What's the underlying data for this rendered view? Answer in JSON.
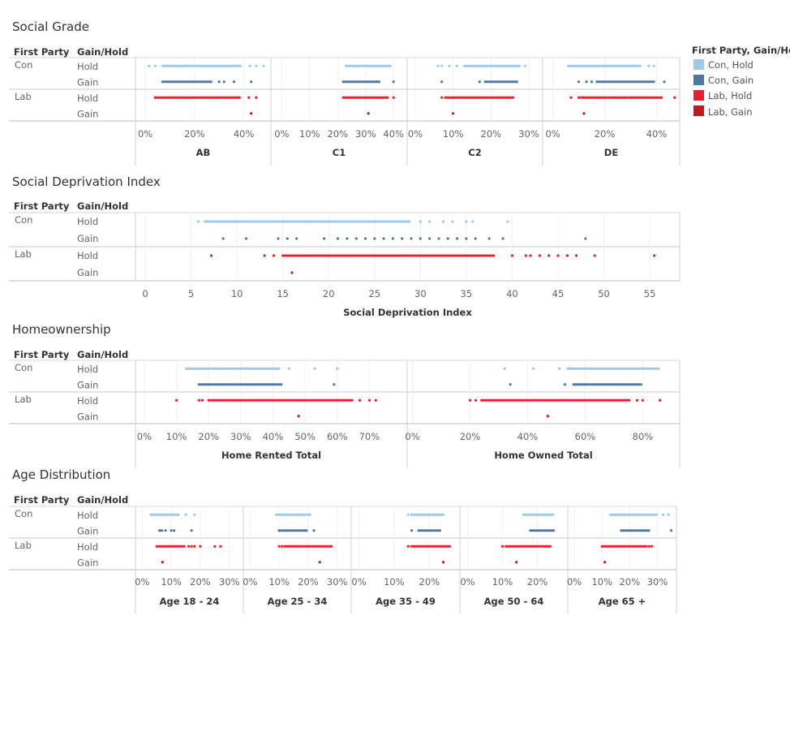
{
  "legend": {
    "title": "First Party, Gain/Hold",
    "items": [
      {
        "label": "Con, Hold",
        "color": "#9dc9ea"
      },
      {
        "label": "Con, Gain",
        "color": "#4e79a7"
      },
      {
        "label": "Lab, Hold",
        "color": "#ee1c2e"
      },
      {
        "label": "Lab, Gain",
        "color": "#c0191e"
      }
    ]
  },
  "row_headers": {
    "party": "First Party",
    "gain_hold": "Gain/Hold"
  },
  "row_labels": {
    "con": "Con",
    "lab": "Lab",
    "hold": "Hold",
    "gain": "Gain"
  },
  "chart_data": [
    {
      "type": "scatter",
      "title": "Social Grade",
      "rows": [
        "Con, Hold",
        "Con, Gain",
        "Lab, Hold",
        "Lab, Gain"
      ],
      "panels": [
        {
          "title": "AB",
          "xlim": [
            -3,
            50
          ],
          "ticks": [
            0,
            20,
            40
          ],
          "tick_labels": [
            "0%",
            "20%",
            "40%"
          ],
          "series": [
            {
              "range": [
                7,
                39
              ],
              "outliers": [
                1.5,
                4,
                42.5,
                45,
                48
              ]
            },
            {
              "range": [
                7,
                27
              ],
              "outliers": [
                30,
                32,
                36,
                43
              ]
            },
            {
              "range": [
                4,
                39
              ],
              "outliers": [
                42,
                45
              ]
            },
            {
              "range": null,
              "outliers": [
                43
              ]
            }
          ]
        },
        {
          "title": "C1",
          "xlim": [
            -3,
            44
          ],
          "ticks": [
            0,
            10,
            20,
            30,
            40
          ],
          "tick_labels": [
            "0%",
            "10%",
            "20%",
            "30%",
            "40%"
          ],
          "series": [
            {
              "range": [
                23,
                39
              ],
              "outliers": []
            },
            {
              "range": [
                22,
                35
              ],
              "outliers": [
                40
              ]
            },
            {
              "range": [
                22,
                38
              ],
              "outliers": [
                40
              ]
            },
            {
              "range": null,
              "outliers": [
                31
              ]
            }
          ]
        },
        {
          "title": "C2",
          "xlim": [
            -1.5,
            33
          ],
          "ticks": [
            0,
            10,
            20,
            30
          ],
          "tick_labels": [
            "0%",
            "10%",
            "20%",
            "30%"
          ],
          "series": [
            {
              "range": [
                13,
                28
              ],
              "outliers": [
                6,
                7,
                9,
                11,
                29
              ]
            },
            {
              "range": [
                18.5,
                27
              ],
              "outliers": [
                7,
                17
              ]
            },
            {
              "range": [
                8,
                26
              ],
              "outliers": [
                7
              ]
            },
            {
              "range": null,
              "outliers": [
                10
              ]
            }
          ]
        },
        {
          "title": "DE",
          "xlim": [
            -3,
            48
          ],
          "ticks": [
            0,
            20,
            40
          ],
          "tick_labels": [
            "0%",
            "20%",
            "40%"
          ],
          "series": [
            {
              "range": [
                6,
                34
              ],
              "outliers": [
                37,
                39
              ]
            },
            {
              "range": [
                17,
                39
              ],
              "outliers": [
                10,
                13,
                15,
                43
              ]
            },
            {
              "range": [
                11,
                42
              ],
              "outliers": [
                7,
                10,
                47
              ]
            },
            {
              "range": null,
              "outliers": [
                12
              ]
            }
          ]
        }
      ]
    },
    {
      "type": "scatter",
      "title": "Social Deprivation Index",
      "rows": [
        "Con, Hold",
        "Con, Gain",
        "Lab, Hold",
        "Lab, Gain"
      ],
      "xlabel": "Social Deprivation Index",
      "panels": [
        {
          "title": "Social Deprivation Index",
          "xlim": [
            -0.8,
            58
          ],
          "ticks": [
            0,
            5,
            10,
            15,
            20,
            25,
            30,
            35,
            40,
            45,
            50,
            55
          ],
          "tick_labels": [
            "0",
            "5",
            "10",
            "15",
            "20",
            "25",
            "30",
            "35",
            "40",
            "45",
            "50",
            "55"
          ],
          "series": [
            {
              "range": [
                6.5,
                29
              ],
              "outliers": [
                5.8,
                30,
                31,
                32.5,
                33.5,
                35,
                35.7,
                39.5
              ]
            },
            {
              "range": null,
              "outliers": [
                8.5,
                11,
                14.5,
                15.5,
                16.5,
                19.5,
                21,
                22,
                23,
                24,
                25,
                26,
                27,
                28,
                29,
                30,
                31,
                32,
                33,
                34,
                35,
                36,
                37.5,
                39,
                48
              ]
            },
            {
              "range": [
                15,
                38
              ],
              "outliers": [
                7.2,
                13,
                14,
                40,
                41.5,
                42,
                43,
                44,
                45,
                46,
                47,
                49,
                55.5
              ]
            },
            {
              "range": null,
              "outliers": [
                16
              ]
            }
          ]
        }
      ]
    },
    {
      "type": "scatter",
      "title": "Homeownership",
      "rows": [
        "Con, Hold",
        "Con, Gain",
        "Lab, Hold",
        "Lab, Gain"
      ],
      "panels": [
        {
          "title": "Home Rented Total",
          "xlim": [
            -2,
            81
          ],
          "ticks": [
            0,
            10,
            20,
            30,
            40,
            50,
            60,
            70
          ],
          "tick_labels": [
            "0%",
            "10%",
            "20%",
            "30%",
            "40%",
            "50%",
            "60%",
            "70%"
          ],
          "series": [
            {
              "range": [
                13,
                42
              ],
              "outliers": [
                45,
                53,
                60
              ]
            },
            {
              "range": [
                17,
                43
              ],
              "outliers": [
                59
              ]
            },
            {
              "range": [
                20,
                65
              ],
              "outliers": [
                10,
                17,
                18,
                67,
                70,
                72
              ]
            },
            {
              "range": null,
              "outliers": [
                48
              ]
            }
          ]
        },
        {
          "title": "Home Owned Total",
          "xlim": [
            -1,
            92
          ],
          "ticks": [
            0,
            20,
            40,
            60,
            80
          ],
          "tick_labels": [
            "0%",
            "20%",
            "40%",
            "60%",
            "80%"
          ],
          "series": [
            {
              "range": [
                54,
                86
              ],
              "outliers": [
                32,
                42,
                51
              ]
            },
            {
              "range": [
                56,
                80
              ],
              "outliers": [
                34,
                53
              ]
            },
            {
              "range": [
                24,
                76
              ],
              "outliers": [
                20,
                22,
                78,
                80,
                86
              ]
            },
            {
              "range": null,
              "outliers": [
                47
              ]
            }
          ]
        }
      ]
    },
    {
      "type": "scatter",
      "title": "Age Distribution",
      "rows": [
        "Con, Hold",
        "Con, Gain",
        "Lab, Hold",
        "Lab, Gain"
      ],
      "panels": [
        {
          "title": "Age 18 - 24",
          "xlim": [
            -1.5,
            34
          ],
          "ticks": [
            0,
            10,
            20,
            30
          ],
          "tick_labels": [
            "0%",
            "10%",
            "20%",
            "30%"
          ],
          "series": [
            {
              "range": [
                3,
                13
              ],
              "outliers": [
                15,
                18
              ]
            },
            {
              "range": [
                6,
                7
              ],
              "outliers": [
                8,
                10,
                11,
                17
              ]
            },
            {
              "range": [
                5,
                15
              ],
              "outliers": [
                16,
                17,
                18,
                20,
                25,
                27
              ]
            },
            {
              "range": null,
              "outliers": [
                7
              ]
            }
          ]
        },
        {
          "title": "Age 25 - 34",
          "xlim": [
            -1.5,
            34
          ],
          "ticks": [
            0,
            10,
            20,
            30
          ],
          "tick_labels": [
            "0%",
            "10%",
            "20%",
            "30%"
          ],
          "series": [
            {
              "range": [
                9,
                21
              ],
              "outliers": []
            },
            {
              "range": [
                10,
                20
              ],
              "outliers": [
                22
              ]
            },
            {
              "range": [
                12,
                28
              ],
              "outliers": [
                10,
                11
              ]
            },
            {
              "range": null,
              "outliers": [
                24
              ]
            }
          ]
        },
        {
          "title": "Age 35 - 49",
          "xlim": [
            -1.5,
            28
          ],
          "ticks": [
            0,
            10,
            20
          ],
          "tick_labels": [
            "0%",
            "10%",
            "20%"
          ],
          "series": [
            {
              "range": [
                15,
                24
              ],
              "outliers": [
                14
              ]
            },
            {
              "range": [
                17,
                23
              ],
              "outliers": [
                15
              ]
            },
            {
              "range": [
                15,
                26
              ],
              "outliers": [
                14
              ]
            },
            {
              "range": null,
              "outliers": [
                24
              ]
            }
          ]
        },
        {
          "title": "Age 50 - 64",
          "xlim": [
            -1.5,
            28
          ],
          "ticks": [
            0,
            10,
            20
          ],
          "tick_labels": [
            "0%",
            "10%",
            "20%"
          ],
          "series": [
            {
              "range": [
                16,
                25
              ],
              "outliers": []
            },
            {
              "range": [
                18,
                25
              ],
              "outliers": []
            },
            {
              "range": [
                11,
                24
              ],
              "outliers": [
                10
              ]
            },
            {
              "range": null,
              "outliers": [
                14
              ]
            }
          ]
        },
        {
          "title": "Age 65 +",
          "xlim": [
            -1.5,
            36
          ],
          "ticks": [
            0,
            10,
            20,
            30
          ],
          "tick_labels": [
            "0%",
            "10%",
            "20%",
            "30%"
          ],
          "series": [
            {
              "range": [
                13,
                30
              ],
              "outliers": [
                32,
                34
              ]
            },
            {
              "range": [
                17,
                27
              ],
              "outliers": [
                35
              ]
            },
            {
              "range": [
                10,
                26
              ],
              "outliers": [
                27,
                28
              ]
            },
            {
              "range": null,
              "outliers": [
                11
              ]
            }
          ]
        }
      ]
    }
  ]
}
